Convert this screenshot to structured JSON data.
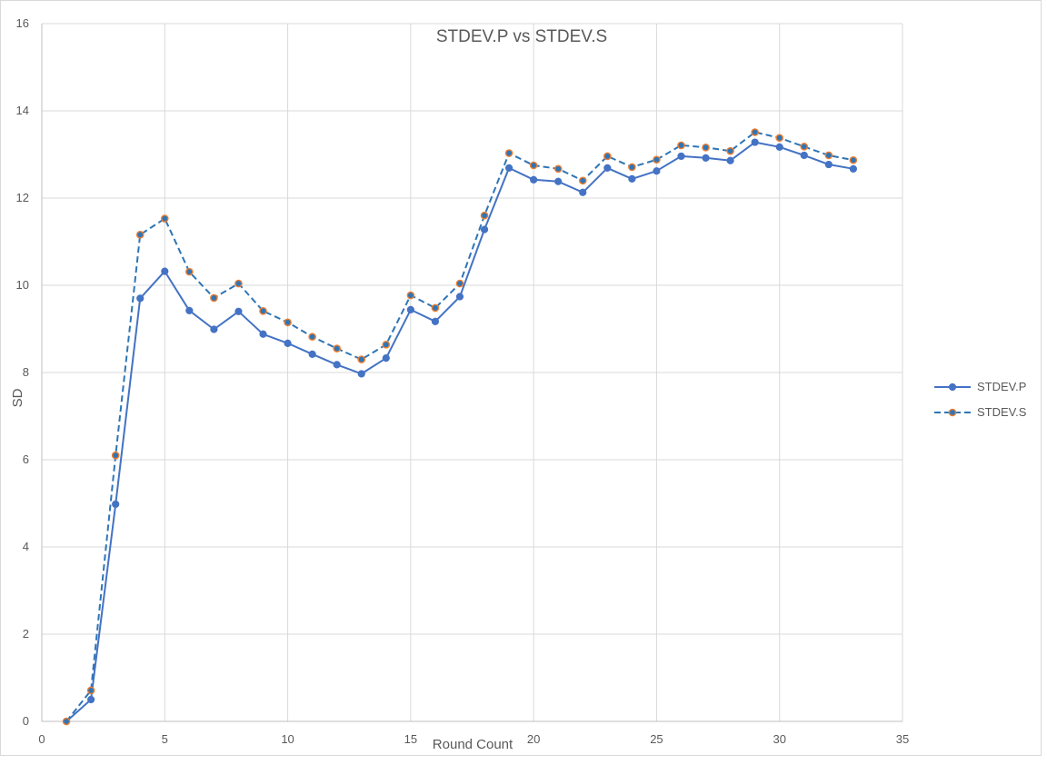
{
  "chart_data": {
    "type": "line",
    "title": "STDEV.P vs STDEV.S",
    "xlabel": "Round Count",
    "ylabel": "SD",
    "xlim": [
      0,
      35
    ],
    "ylim": [
      0,
      16
    ],
    "x_ticks": [
      0,
      5,
      10,
      15,
      20,
      25,
      30,
      35
    ],
    "y_ticks": [
      0,
      2,
      4,
      6,
      8,
      10,
      12,
      14,
      16
    ],
    "grid": true,
    "legend_position": "right",
    "x": [
      1,
      2,
      3,
      4,
      5,
      6,
      7,
      8,
      9,
      10,
      11,
      12,
      13,
      14,
      15,
      16,
      17,
      18,
      19,
      20,
      21,
      22,
      23,
      24,
      25,
      26,
      27,
      28,
      29,
      30,
      31,
      32,
      33
    ],
    "series": [
      {
        "name": "STDEV.P",
        "style": "solid",
        "color": "#4472c4",
        "marker_color": "#4472c4",
        "values": [
          0,
          0.5,
          4.98,
          9.7,
          10.32,
          9.42,
          8.99,
          9.4,
          8.88,
          8.67,
          8.42,
          8.18,
          7.97,
          8.33,
          9.44,
          9.17,
          9.74,
          11.28,
          12.69,
          12.42,
          12.38,
          12.13,
          12.69,
          12.44,
          12.62,
          12.96,
          12.92,
          12.86,
          13.28,
          13.17,
          12.98,
          12.77,
          12.67
        ]
      },
      {
        "name": "STDEV.S",
        "style": "dashed",
        "color": "#2e75b6",
        "marker_color": "#2e75b6",
        "marker_edge": "#ed7d31",
        "values": [
          0,
          0.71,
          6.1,
          11.16,
          11.53,
          10.31,
          9.71,
          10.04,
          9.41,
          9.15,
          8.82,
          8.55,
          8.3,
          8.64,
          9.77,
          9.48,
          10.04,
          11.6,
          13.03,
          12.75,
          12.67,
          12.4,
          12.96,
          12.71,
          12.88,
          13.21,
          13.16,
          13.08,
          13.51,
          13.38,
          13.18,
          12.98,
          12.87
        ]
      }
    ]
  }
}
